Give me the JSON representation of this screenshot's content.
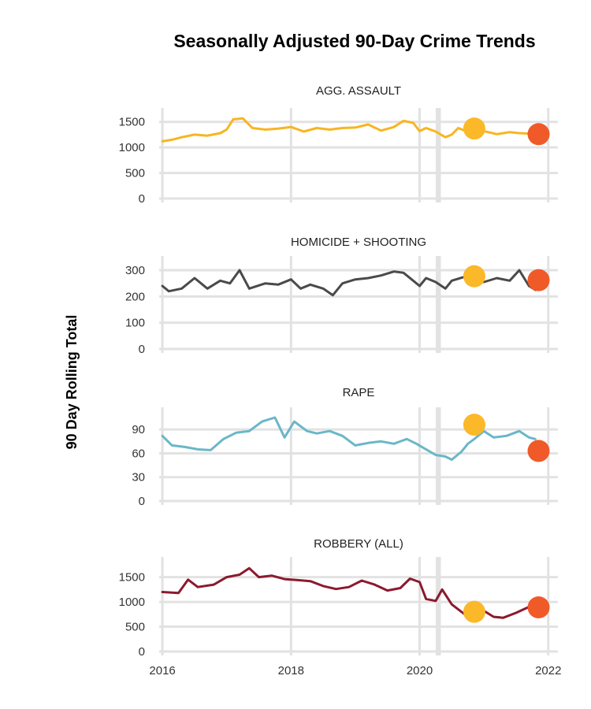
{
  "chart_data": {
    "type": "line",
    "title": "Seasonally Adjusted 90-Day Crime Trends",
    "ylabel": "90 Day Rolling Total",
    "xlabel": "",
    "x_ticks": [
      2016,
      2018,
      2020,
      2022
    ],
    "xlim": [
      2015.95,
      2022.15
    ],
    "shaded_period": [
      2020.25,
      2020.33
    ],
    "colors": {
      "highlight_past": "#fbb829",
      "highlight_current": "#f05a28",
      "shade": "#e2e2e2"
    },
    "facets": [
      {
        "name": "AGG. ASSAULT",
        "color": "#f8b520",
        "ylim": [
          0,
          1650
        ],
        "y_ticks": [
          0,
          500,
          1000,
          1500
        ],
        "x": [
          2016.0,
          2016.15,
          2016.3,
          2016.5,
          2016.7,
          2016.9,
          2017.0,
          2017.1,
          2017.25,
          2017.4,
          2017.6,
          2017.8,
          2018.0,
          2018.2,
          2018.4,
          2018.6,
          2018.8,
          2019.0,
          2019.2,
          2019.4,
          2019.6,
          2019.75,
          2019.9,
          2020.0,
          2020.1,
          2020.25,
          2020.4,
          2020.5,
          2020.6,
          2020.7,
          2020.8,
          2020.85,
          2021.0,
          2021.2,
          2021.4,
          2021.55,
          2021.7,
          2021.8
        ],
        "values": [
          1120,
          1150,
          1200,
          1250,
          1230,
          1280,
          1350,
          1550,
          1570,
          1380,
          1350,
          1370,
          1400,
          1310,
          1380,
          1350,
          1380,
          1390,
          1450,
          1330,
          1400,
          1520,
          1480,
          1320,
          1380,
          1310,
          1200,
          1250,
          1380,
          1330,
          1350,
          1360,
          1320,
          1260,
          1300,
          1280,
          1270,
          1260
        ],
        "highlights": [
          {
            "x": 2020.85,
            "value": 1370,
            "role": "past"
          },
          {
            "x": 2021.85,
            "value": 1260,
            "role": "current"
          }
        ]
      },
      {
        "name": "HOMICIDE + SHOOTING",
        "color": "#4a4a4a",
        "ylim": [
          0,
          330
        ],
        "y_ticks": [
          0,
          100,
          200,
          300
        ],
        "x": [
          2016.0,
          2016.1,
          2016.3,
          2016.5,
          2016.7,
          2016.9,
          2017.05,
          2017.2,
          2017.35,
          2017.6,
          2017.8,
          2018.0,
          2018.15,
          2018.3,
          2018.5,
          2018.65,
          2018.8,
          2019.0,
          2019.2,
          2019.4,
          2019.6,
          2019.75,
          2019.9,
          2020.0,
          2020.1,
          2020.25,
          2020.4,
          2020.5,
          2020.7,
          2020.85,
          2021.0,
          2021.2,
          2021.4,
          2021.55,
          2021.7,
          2021.8
        ],
        "values": [
          240,
          220,
          230,
          270,
          230,
          260,
          250,
          300,
          230,
          250,
          245,
          265,
          230,
          245,
          230,
          205,
          250,
          265,
          270,
          280,
          295,
          290,
          260,
          240,
          270,
          255,
          230,
          260,
          275,
          260,
          255,
          270,
          260,
          300,
          240,
          225
        ],
        "highlights": [
          {
            "x": 2020.85,
            "value": 277,
            "role": "past"
          },
          {
            "x": 2021.85,
            "value": 262,
            "role": "current"
          }
        ]
      },
      {
        "name": "RAPE",
        "color": "#6ab7c8",
        "ylim": [
          0,
          110
        ],
        "y_ticks": [
          0,
          30,
          60,
          90
        ],
        "x": [
          2016.0,
          2016.15,
          2016.35,
          2016.55,
          2016.75,
          2016.95,
          2017.15,
          2017.35,
          2017.55,
          2017.75,
          2017.9,
          2018.05,
          2018.25,
          2018.4,
          2018.6,
          2018.8,
          2019.0,
          2019.2,
          2019.4,
          2019.6,
          2019.8,
          2019.95,
          2020.1,
          2020.25,
          2020.4,
          2020.5,
          2020.65,
          2020.75,
          2020.85,
          2021.0,
          2021.15,
          2021.35,
          2021.55,
          2021.7,
          2021.8
        ],
        "values": [
          82,
          70,
          68,
          65,
          64,
          78,
          86,
          88,
          100,
          105,
          80,
          100,
          88,
          85,
          88,
          82,
          70,
          73,
          75,
          72,
          78,
          72,
          65,
          58,
          56,
          52,
          62,
          72,
          78,
          88,
          80,
          82,
          88,
          80,
          78
        ],
        "highlights": [
          {
            "x": 2020.85,
            "value": 96,
            "role": "past"
          },
          {
            "x": 2021.85,
            "value": 63,
            "role": "current"
          }
        ]
      },
      {
        "name": "ROBBERY (ALL)",
        "color": "#8b1a2e",
        "ylim": [
          0,
          1780
        ],
        "y_ticks": [
          0,
          500,
          1000,
          1500
        ],
        "x": [
          2016.0,
          2016.25,
          2016.4,
          2016.55,
          2016.8,
          2017.0,
          2017.2,
          2017.35,
          2017.5,
          2017.7,
          2017.9,
          2018.1,
          2018.3,
          2018.5,
          2018.7,
          2018.9,
          2019.1,
          2019.3,
          2019.5,
          2019.7,
          2019.85,
          2020.0,
          2020.1,
          2020.25,
          2020.35,
          2020.5,
          2020.7,
          2020.85,
          2021.0,
          2021.15,
          2021.3,
          2021.5,
          2021.7,
          2021.8
        ],
        "values": [
          1200,
          1180,
          1450,
          1300,
          1350,
          1500,
          1550,
          1680,
          1500,
          1530,
          1460,
          1440,
          1420,
          1320,
          1260,
          1300,
          1430,
          1350,
          1230,
          1280,
          1470,
          1400,
          1060,
          1020,
          1250,
          950,
          750,
          780,
          820,
          700,
          680,
          780,
          900,
          870
        ],
        "highlights": [
          {
            "x": 2020.85,
            "value": 800,
            "role": "past"
          },
          {
            "x": 2021.85,
            "value": 890,
            "role": "current"
          }
        ]
      }
    ]
  }
}
